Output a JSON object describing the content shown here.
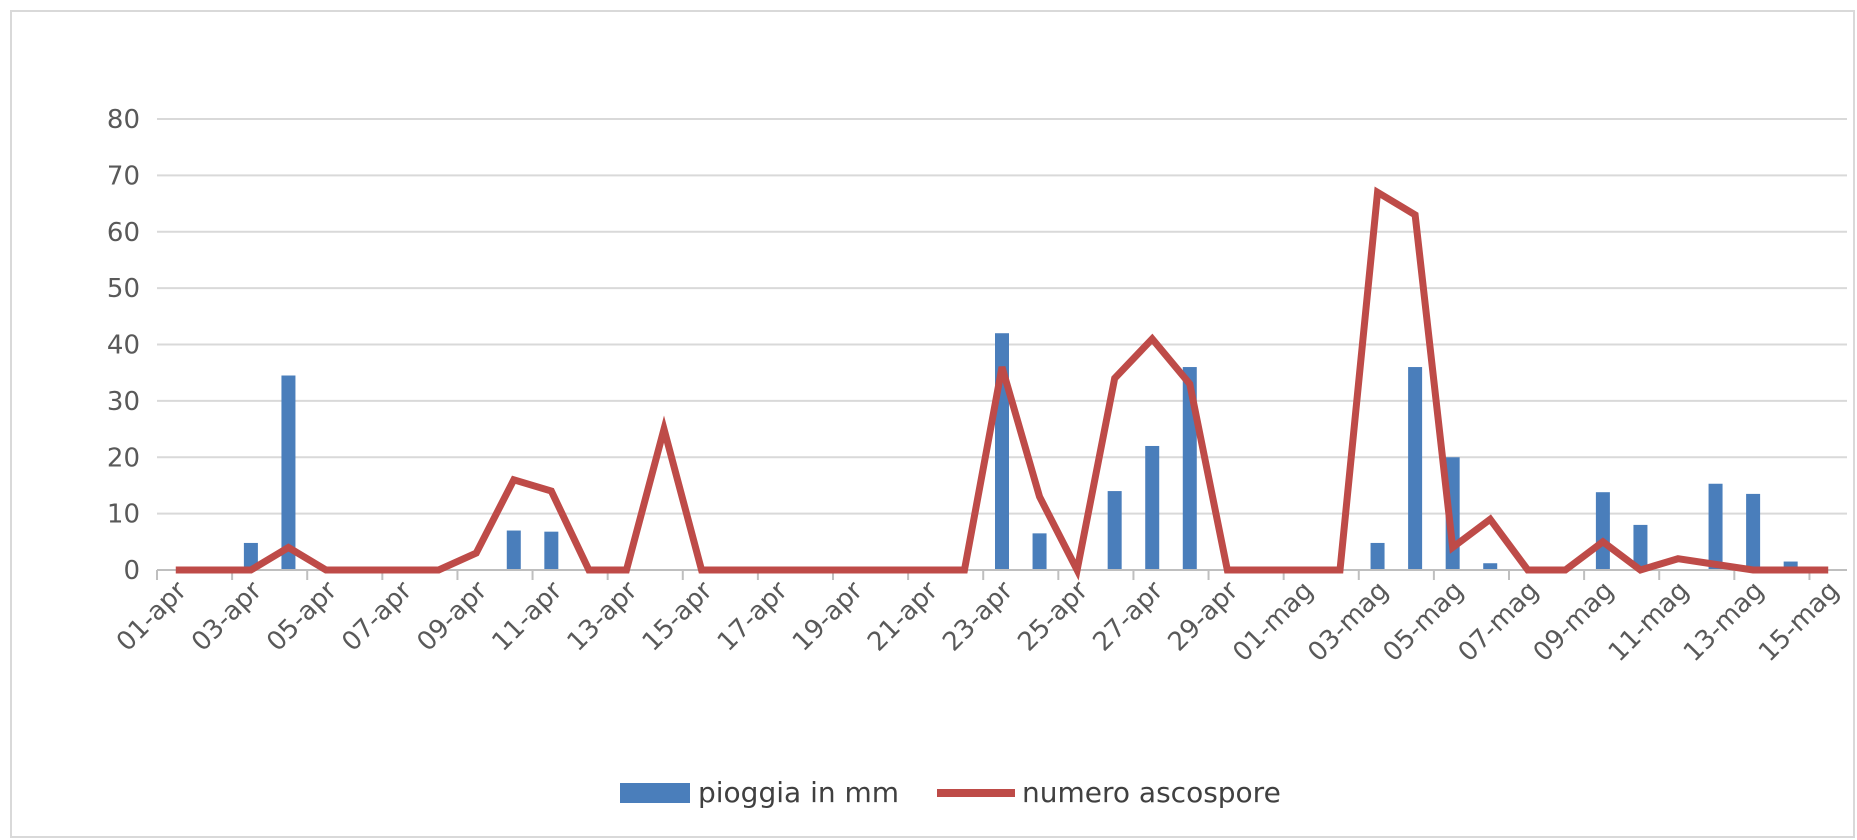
{
  "chart_data": {
    "type": "bar+line",
    "ylim": [
      0,
      80
    ],
    "yticks": [
      0,
      10,
      20,
      30,
      40,
      50,
      60,
      70,
      80
    ],
    "x": [
      "01-apr",
      "02-apr",
      "03-apr",
      "04-apr",
      "05-apr",
      "06-apr",
      "07-apr",
      "08-apr",
      "09-apr",
      "10-apr",
      "11-apr",
      "12-apr",
      "13-apr",
      "14-apr",
      "15-apr",
      "16-apr",
      "17-apr",
      "18-apr",
      "19-apr",
      "20-apr",
      "21-apr",
      "22-apr",
      "23-apr",
      "24-apr",
      "25-apr",
      "26-apr",
      "27-apr",
      "28-apr",
      "29-apr",
      "30-apr",
      "01-mag",
      "02-mag",
      "03-mag",
      "04-mag",
      "05-mag",
      "06-mag",
      "07-mag",
      "08-mag",
      "09-mag",
      "10-mag",
      "11-mag",
      "12-mag",
      "13-mag",
      "14-mag",
      "15-mag"
    ],
    "xtick_labels": [
      "01-apr",
      "03-apr",
      "05-apr",
      "07-apr",
      "09-apr",
      "11-apr",
      "13-apr",
      "15-apr",
      "17-apr",
      "19-apr",
      "21-apr",
      "23-apr",
      "25-apr",
      "27-apr",
      "29-apr",
      "01-mag",
      "03-mag",
      "05-mag",
      "07-mag",
      "09-mag",
      "11-mag",
      "13-mag",
      "15-mag"
    ],
    "series": [
      {
        "name": "pioggia in mm",
        "type": "bar",
        "color": "#4a7ebb",
        "values": [
          0,
          0,
          4.8,
          34.5,
          0,
          0,
          0,
          0,
          0,
          7,
          6.8,
          0,
          0,
          0,
          0,
          0,
          0,
          0,
          0,
          0,
          0,
          0,
          42,
          6.5,
          0,
          14,
          22,
          36,
          0,
          0,
          0,
          0,
          4.8,
          36,
          20,
          1.2,
          0,
          0,
          13.8,
          8,
          0,
          15.3,
          13.5,
          1.5,
          0
        ]
      },
      {
        "name": "numero ascospore",
        "type": "line",
        "color": "#be4b48",
        "values": [
          0,
          0,
          0,
          4,
          0,
          0,
          0,
          0,
          3,
          16,
          14,
          0,
          0,
          25,
          0,
          0,
          0,
          0,
          0,
          0,
          0,
          0,
          36,
          13,
          0,
          34,
          41,
          33,
          0,
          0,
          0,
          0,
          67,
          63,
          4,
          9,
          0,
          0,
          5,
          0,
          2,
          1,
          0,
          0,
          0
        ]
      }
    ],
    "grid": true,
    "legend_position": "bottom"
  }
}
